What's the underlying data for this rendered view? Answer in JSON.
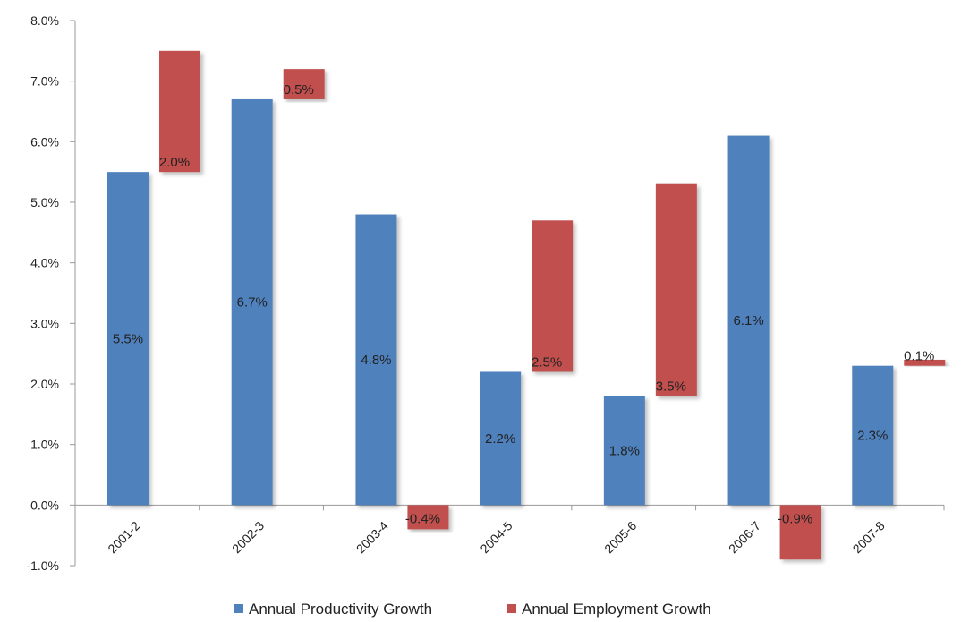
{
  "chart_data": {
    "type": "bar",
    "subtype": "stacked",
    "categories": [
      "2001-2",
      "2002-3",
      "2003-4",
      "2004-5",
      "2005-6",
      "2006-7",
      "2007-8"
    ],
    "series": [
      {
        "name": "Annual Productivity Growth",
        "values": [
          5.5,
          6.7,
          4.8,
          2.2,
          1.8,
          6.1,
          2.3
        ],
        "labels": [
          "5.5%",
          "6.7%",
          "4.8%",
          "2.2%",
          "1.8%",
          "6.1%",
          "2.3%"
        ],
        "color": "#4f81bd"
      },
      {
        "name": "Annual Employment Growth",
        "values": [
          2.0,
          0.5,
          -0.4,
          2.5,
          3.5,
          -0.9,
          0.1
        ],
        "labels": [
          "2.0%",
          "0.5%",
          "-0.4%",
          "2.5%",
          "3.5%",
          "-0.9%",
          "0.1%"
        ],
        "color": "#c0504d"
      }
    ],
    "yaxis": {
      "ticks": [
        -1,
        0,
        1,
        2,
        3,
        4,
        5,
        6,
        7,
        8
      ],
      "tick_labels": [
        "-1.0%",
        "0.0%",
        "1.0%",
        "2.0%",
        "3.0%",
        "4.0%",
        "5.0%",
        "6.0%",
        "7.0%",
        "8.0%"
      ],
      "ylim": [
        -1,
        8
      ]
    },
    "title": "",
    "xlabel": "",
    "ylabel": "",
    "grid": false,
    "legend_position": "bottom"
  }
}
